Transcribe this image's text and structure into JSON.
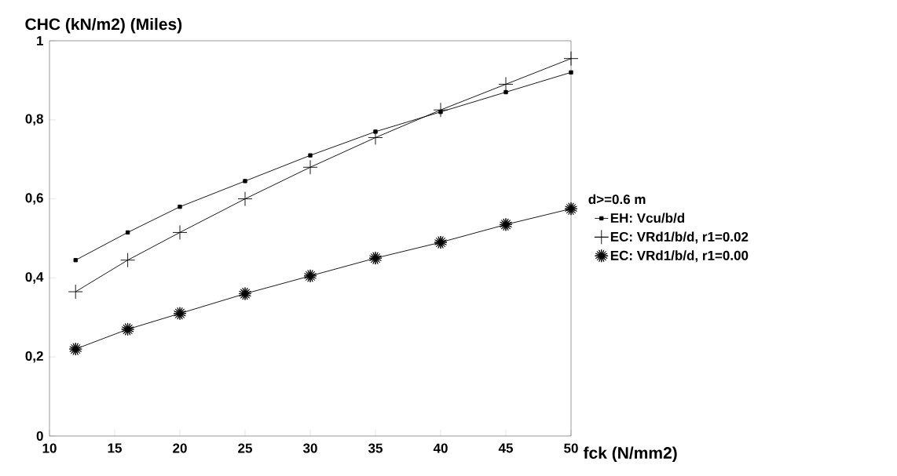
{
  "chart_data": {
    "type": "line",
    "ylabel": "CHC (kN/m2) (Miles)",
    "xlabel": "fck (N/mm2)",
    "legend_title": "d>=0.6 m",
    "legend": "right",
    "grid": false,
    "x": [
      12,
      16,
      20,
      25,
      30,
      35,
      40,
      45,
      50
    ],
    "xlim": [
      10,
      50
    ],
    "xticks": [
      10,
      15,
      20,
      25,
      30,
      35,
      40,
      45,
      50
    ],
    "ylim": [
      0,
      1
    ],
    "yticks": [
      0,
      {
        "value": 0.2,
        "label": "0,2"
      },
      {
        "value": 0.4,
        "label": "0,4"
      },
      {
        "value": 0.6,
        "label": "0,6"
      },
      {
        "value": 0.8,
        "label": "0,8"
      },
      1
    ],
    "line_style": "solid",
    "series": [
      {
        "name": "EH: Vcu/b/d",
        "color": "#000000",
        "marker": "square",
        "values": [
          0.445,
          0.515,
          0.58,
          0.645,
          0.71,
          0.77,
          0.82,
          0.87,
          0.92
        ]
      },
      {
        "name": "EC: VRd1/b/d,  r1=0.02",
        "color": "#000000",
        "marker": "cross",
        "values": [
          0.365,
          0.445,
          0.515,
          0.6,
          0.68,
          0.755,
          0.825,
          0.89,
          0.955
        ]
      },
      {
        "name": "EC: VRd1/b/d,  r1=0.00",
        "color": "#000000",
        "marker": "star",
        "values": [
          0.22,
          0.27,
          0.31,
          0.36,
          0.405,
          0.45,
          0.49,
          0.535,
          0.575
        ]
      }
    ]
  }
}
